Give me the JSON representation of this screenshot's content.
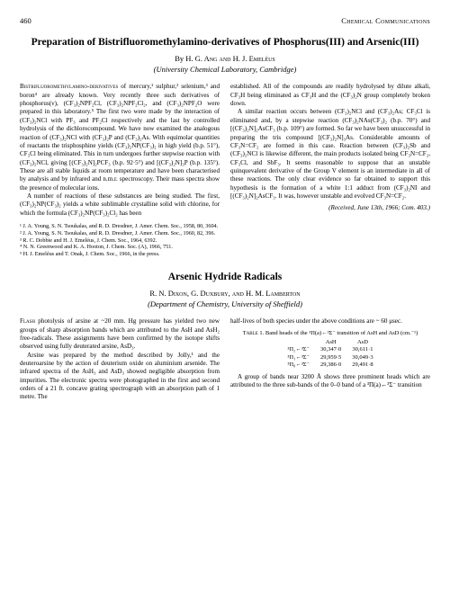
{
  "header": {
    "page_number": "460",
    "journal": "Chemical Communications"
  },
  "article1": {
    "title": "Preparation of Bistrifluoromethylamino-derivatives of Phosphorus(III) and Arsenic(III)",
    "byline_prefix": "By ",
    "authors": "H. G. Ang and H. J. Emeléus",
    "affiliation": "(University Chemical Laboratory, Cambridge)",
    "p1a": "Bistrifluoromethylamino-derivatives",
    "p1b": " of mercury,¹ sulphur,² selenium,³ and boron⁴ are already known. Very recently three such derivatives of phosphorus(v), (CF₃)₂NPF₂Cl, (CF₃)₂NPF₂Cl₂, and (CF₃)₂NPF₂O were prepared in this laboratory.⁵ The first two were made by the interaction of (CF₃)₂NCl with PF₃ and PF₂Cl respectively and the last by controlled hydrolysis of the dichlorocompound. We have now examined the analogous reaction of (CF₃)₂NCl with (CF₃)₂P and (CF₃)₂As. With equimolar quantities of reactants the trisphosphine yields (CF₃)₂NP(CF₃)₂ in high yield (b.p. 51°), CF₃Cl being eliminated. This in turn undergoes further stepwise reaction with (CF₃)₂NCl, giving [(CF₃)₂N]₂PCF₃ (b.p. 92·5°) and [(CF₃)₂N]₃P (b.p. 135°). These are all stable liquids at room temperature and have been characterised by analysis and by infrared and n.m.r. spectroscopy. Their mass spectra show the presence of molecular ions.",
    "p2": "A number of reactions of these substances are being studied. The first, (CF₃)₂NP(CF₃)₂ yields a white sublimable crystalline solid with chlorine, for which the formula (CF₃)₂NP(CF₃)₂Cl₂ has been",
    "p3": "established. All of the compounds are readily hydrolysed by dilute alkali, CF₃H being eliminated as CF₃H and the (CF₃)₂N group completely broken down.",
    "p4": "A similar reaction occurs between (CF₃)₂NCl and (CF₃)₂As; CF₃Cl is eliminated and, by a stepwise reaction (CF₃)₂NAs(CF₃)₂ (b.p. 70°) and [(CF₃)₂N]₂AsCF₃ (b.p. 109°) are formed. So far we have been unsuccessful in preparing the tris compound [(CF₃)₂N]₃As. Considerable amounts of CF₃N=CF₂ are formed in this case. Reaction between (CF₃)₂Sb and (CF₃)₂NCl is likewise different, the main products isolated being CF₃N=CF₂, CF₃Cl, and SbF₃. It seems reasonable to suppose that an unstable quinquevalent derivative of the Group V element is an intermediate in all of these reactions. The only clear evidence so far obtained to support this hypothesis is the formation of a white 1:1 adduct from (CF₃)₂NI and [(CF₃)₂N]₂AsCF₃. It was, however unstable and evolved CF₃N=CF₂.",
    "received": "(Received, June 13th, 1966; Com. 403.)",
    "refs": {
      "r1": "¹ J. A. Young, S. N. Tsoukalas, and R. D. Dresdner, J. Amer. Chem. Soc., 1958, 80, 3604.",
      "r2": "² J. A. Young, S. N. Tsoukalas, and R. D. Dresdner, J. Amer. Chem. Soc., 1960, 82, 396.",
      "r3": "³ R. C. Dobbie and H. J. Emeléus, J. Chem. Soc., 1964, 6392.",
      "r4": "⁴ N. N. Greenwood and K. A. Hooton, J. Chem. Soc. (A), 1966, 751.",
      "r5": "⁵ H. J. Emeléus and T. Onak, J. Chem. Soc., 1966, in the press."
    }
  },
  "article2": {
    "title": "Arsenic Hydride Radicals",
    "authors": "R. N. Dixon, G. Duxbury, and H. M. Lamberton",
    "affiliation": "(Department of Chemistry, University of Sheffield)",
    "p1a": "Flash",
    "p1b": " photolysis of arsine at ~20 mm. Hg pressure has yielded two new groups of sharp absorption bands which are attributed to the AsH and AsH₂ free-radicals. These assignments have been confirmed by the isotope shifts observed using fully deuterated arsine, AsD₃.",
    "p2": "Arsine was prepared by the method described by Jolly,¹ and the deuteroarsine by the action of deuterium oxide on aluminium arsenide. The infrared spectra of the AsH₃ and AsD₃ showed negligible absorption from impurities. The electronic spectra were photographed in the first and second orders of a 21 ft. concave grating spectrograph with an absorption path of 1 metre. The",
    "p3": "half-lives of both species under the above conditions are ~ 60 μsec.",
    "table": {
      "label": "Table 1.",
      "caption": "Band heads of the ³Π(a)←³Σ⁻ transition of AsH and AsD (cm.⁻¹)",
      "h1": "AsH",
      "h2": "AsD",
      "rows": [
        {
          "l": "³Π₂←³Σ⁻",
          "c1": "30,347·0",
          "c2": "30,611·1"
        },
        {
          "l": "³Π₁←³Σ⁻",
          "c1": "29,959·5",
          "c2": "30,049·3"
        },
        {
          "l": "³Π₀←³Σ⁻",
          "c1": "29,386·0",
          "c2": "29,491·8"
        }
      ]
    },
    "p4": "A group of bands near 3200 Å shows three prominent heads which are attributed to the three sub-bands of the 0–0 band of a ³Π(a)←³Σ⁻ transition"
  }
}
